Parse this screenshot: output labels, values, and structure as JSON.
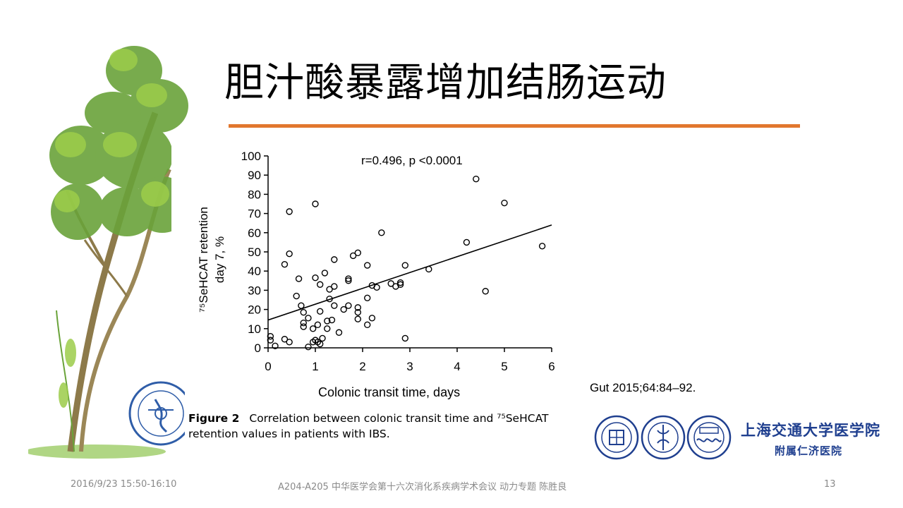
{
  "slide": {
    "title": "胆汁酸暴露增加结肠运动",
    "reference": "Gut 2015;64:84–92.",
    "caption_bold": "Figure 2",
    "caption_text": "Correlation between colonic transit time and ⁷⁵SeHCAT retention values in patients with IBS."
  },
  "footer": {
    "date": "2016/9/23 15:50-16:10",
    "center": "A204-A205 中华医学会第十六次消化系疾病学术会议 动力专题  陈胜良",
    "page": "13"
  },
  "logos": {
    "sjtu_name": "上海交通大学医学院",
    "hospital_name": "附属仁济医院"
  },
  "colors": {
    "accent": "#e2772e",
    "sjtu_blue": "#1f3f8f",
    "leaf_green": "#6aa33a"
  },
  "chart_data": {
    "type": "scatter",
    "annotation": "r=0.496, p <0.0001",
    "xlabel": "Colonic transit time, days",
    "ylabel_line1": "⁷⁵SeHCAT retention",
    "ylabel_line2": "day 7, %",
    "xlim": [
      0,
      6
    ],
    "ylim": [
      0,
      100
    ],
    "xticks": [
      0,
      1,
      2,
      3,
      4,
      5,
      6
    ],
    "xtick_labels": [
      "0",
      "1",
      "2",
      "3",
      "4",
      "5",
      "6"
    ],
    "yticks": [
      0,
      10,
      20,
      30,
      40,
      50,
      60,
      70,
      80,
      90,
      100
    ],
    "yticks_labels": [
      "0",
      "10",
      "20",
      "30",
      "40",
      "50",
      "60",
      "70",
      "80",
      "90",
      "100"
    ],
    "regression_line": {
      "x": [
        0,
        6
      ],
      "y": [
        14.5,
        64
      ]
    },
    "points": [
      [
        0.05,
        6
      ],
      [
        0.05,
        4
      ],
      [
        0.15,
        1
      ],
      [
        0.35,
        4.5
      ],
      [
        0.45,
        3
      ],
      [
        0.35,
        43.5
      ],
      [
        0.45,
        71
      ],
      [
        0.45,
        49
      ],
      [
        0.6,
        27
      ],
      [
        0.65,
        36
      ],
      [
        0.7,
        22
      ],
      [
        0.75,
        18.5
      ],
      [
        0.75,
        13
      ],
      [
        0.75,
        11
      ],
      [
        0.85,
        15.5
      ],
      [
        0.85,
        0.5
      ],
      [
        0.95,
        10
      ],
      [
        0.95,
        3
      ],
      [
        1.0,
        36.5
      ],
      [
        1.0,
        4
      ],
      [
        1.0,
        75
      ],
      [
        1.05,
        12
      ],
      [
        1.05,
        3
      ],
      [
        1.1,
        33
      ],
      [
        1.1,
        19
      ],
      [
        1.1,
        2
      ],
      [
        1.15,
        5
      ],
      [
        1.2,
        39
      ],
      [
        1.25,
        14
      ],
      [
        1.25,
        10
      ],
      [
        1.3,
        25.5
      ],
      [
        1.3,
        30.5
      ],
      [
        1.35,
        14.5
      ],
      [
        1.4,
        46
      ],
      [
        1.4,
        32
      ],
      [
        1.4,
        22
      ],
      [
        1.5,
        8
      ],
      [
        1.6,
        20
      ],
      [
        1.7,
        36
      ],
      [
        1.7,
        35
      ],
      [
        1.7,
        22
      ],
      [
        1.8,
        48
      ],
      [
        1.9,
        49.5
      ],
      [
        1.9,
        21
      ],
      [
        1.9,
        18.5
      ],
      [
        1.9,
        15
      ],
      [
        2.1,
        43
      ],
      [
        2.1,
        26
      ],
      [
        2.1,
        12
      ],
      [
        2.2,
        32.5
      ],
      [
        2.2,
        15.5
      ],
      [
        2.3,
        31.5
      ],
      [
        2.4,
        60
      ],
      [
        2.6,
        33.5
      ],
      [
        2.7,
        32
      ],
      [
        2.8,
        33
      ],
      [
        2.8,
        34
      ],
      [
        2.9,
        43
      ],
      [
        2.9,
        5
      ],
      [
        3.4,
        41
      ],
      [
        4.2,
        55
      ],
      [
        4.4,
        88
      ],
      [
        4.6,
        29.5
      ],
      [
        5.0,
        75.5
      ],
      [
        5.8,
        53
      ]
    ]
  }
}
